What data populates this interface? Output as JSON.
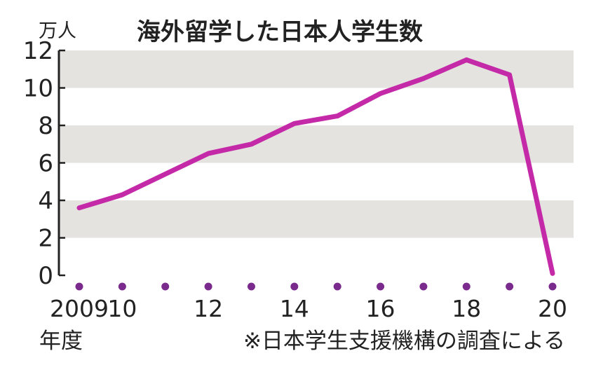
{
  "chart_data": {
    "type": "line",
    "title": "海外留学した日本人学生数",
    "ylabel": "万人",
    "xlabel": "年度",
    "x": [
      2009,
      2010,
      2011,
      2012,
      2013,
      2014,
      2015,
      2016,
      2017,
      2018,
      2019,
      2020
    ],
    "x_tick_labels": [
      "2009",
      "10",
      "12",
      "14",
      "16",
      "18",
      "20"
    ],
    "x_tick_values": [
      2009,
      2010,
      2012,
      2014,
      2016,
      2018,
      2020
    ],
    "series": [
      {
        "values": [
          3.6,
          4.3,
          5.4,
          6.5,
          7.0,
          8.1,
          8.5,
          9.7,
          10.5,
          11.5,
          10.7,
          0.1
        ]
      }
    ],
    "ylim": [
      0,
      12
    ],
    "y_ticks": [
      0,
      2,
      4,
      6,
      8,
      10,
      12
    ],
    "grid": "alternating horizontal bands",
    "note": "※日本学生支援機構の調査による",
    "colors": {
      "line": "#c42aa8",
      "band": "#e5e3df",
      "dot": "#7a2a8c"
    }
  }
}
